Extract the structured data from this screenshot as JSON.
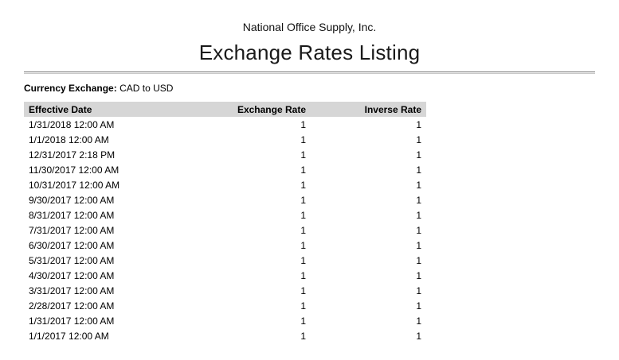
{
  "header": {
    "company": "National Office Supply, Inc.",
    "title": "Exchange Rates Listing"
  },
  "filter": {
    "label": "Currency Exchange:",
    "value": "CAD to USD"
  },
  "table": {
    "columns": [
      "Effective Date",
      "Exchange Rate",
      "Inverse Rate"
    ],
    "rows": [
      {
        "date": "1/31/2018 12:00 AM",
        "exchange_rate": "1",
        "inverse_rate": "1"
      },
      {
        "date": "1/1/2018 12:00 AM",
        "exchange_rate": "1",
        "inverse_rate": "1"
      },
      {
        "date": "12/31/2017 2:18 PM",
        "exchange_rate": "1",
        "inverse_rate": "1"
      },
      {
        "date": "11/30/2017 12:00 AM",
        "exchange_rate": "1",
        "inverse_rate": "1"
      },
      {
        "date": "10/31/2017 12:00 AM",
        "exchange_rate": "1",
        "inverse_rate": "1"
      },
      {
        "date": "9/30/2017 12:00 AM",
        "exchange_rate": "1",
        "inverse_rate": "1"
      },
      {
        "date": "8/31/2017 12:00 AM",
        "exchange_rate": "1",
        "inverse_rate": "1"
      },
      {
        "date": "7/31/2017 12:00 AM",
        "exchange_rate": "1",
        "inverse_rate": "1"
      },
      {
        "date": "6/30/2017 12:00 AM",
        "exchange_rate": "1",
        "inverse_rate": "1"
      },
      {
        "date": "5/31/2017 12:00 AM",
        "exchange_rate": "1",
        "inverse_rate": "1"
      },
      {
        "date": "4/30/2017 12:00 AM",
        "exchange_rate": "1",
        "inverse_rate": "1"
      },
      {
        "date": "3/31/2017 12:00 AM",
        "exchange_rate": "1",
        "inverse_rate": "1"
      },
      {
        "date": "2/28/2017 12:00 AM",
        "exchange_rate": "1",
        "inverse_rate": "1"
      },
      {
        "date": "1/31/2017 12:00 AM",
        "exchange_rate": "1",
        "inverse_rate": "1"
      },
      {
        "date": "1/1/2017 12:00 AM",
        "exchange_rate": "1",
        "inverse_rate": "1"
      }
    ]
  },
  "colors": {
    "header_background": "#d6d6d6",
    "divider_dark": "#6e6e6e",
    "divider_light": "#c9c9c9"
  }
}
